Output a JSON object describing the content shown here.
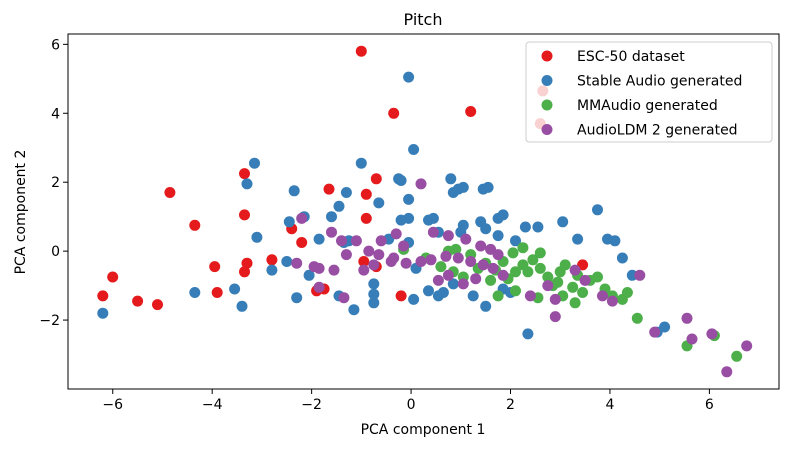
{
  "chart_data": {
    "type": "scatter",
    "title": "Pitch",
    "xlabel": "PCA component 1",
    "ylabel": "PCA component 2",
    "xlim": [
      -6.9,
      7.4
    ],
    "ylim": [
      -4.0,
      6.3
    ],
    "xticks": [
      -6,
      -4,
      -2,
      0,
      2,
      4,
      6
    ],
    "yticks": [
      -2,
      0,
      2,
      4,
      6
    ],
    "xtick_labels": [
      "−6",
      "−4",
      "−2",
      "0",
      "2",
      "4",
      "6"
    ],
    "ytick_labels": [
      "−2",
      "0",
      "2",
      "4",
      "6"
    ],
    "legend_position": "top-right",
    "series": [
      {
        "name": "ESC-50 dataset",
        "color": "#e41a1c",
        "points": [
          [
            -1.0,
            5.8
          ],
          [
            -0.35,
            4.0
          ],
          [
            1.2,
            4.05
          ],
          [
            -3.35,
            2.25
          ],
          [
            -4.85,
            1.7
          ],
          [
            -1.65,
            1.8
          ],
          [
            -0.7,
            2.1
          ],
          [
            -0.9,
            1.65
          ],
          [
            -3.35,
            1.05
          ],
          [
            -0.9,
            0.95
          ],
          [
            -4.35,
            0.75
          ],
          [
            -2.4,
            0.65
          ],
          [
            -2.2,
            0.25
          ],
          [
            -2.8,
            -0.25
          ],
          [
            -3.3,
            -0.35
          ],
          [
            -3.35,
            -0.6
          ],
          [
            -3.95,
            -0.45
          ],
          [
            -6.0,
            -0.75
          ],
          [
            -6.2,
            -1.3
          ],
          [
            -5.5,
            -1.45
          ],
          [
            -5.1,
            -1.55
          ],
          [
            -3.9,
            -1.2
          ],
          [
            -1.9,
            -1.15
          ],
          [
            -1.75,
            -1.1
          ],
          [
            -0.95,
            -0.3
          ],
          [
            -0.7,
            -0.45
          ],
          [
            -0.2,
            -1.3
          ],
          [
            2.65,
            4.65
          ],
          [
            2.6,
            3.7
          ],
          [
            3.45,
            -0.4
          ]
        ]
      },
      {
        "name": "Stable Audio generated",
        "color": "#377eb8",
        "points": [
          [
            -0.05,
            5.05
          ],
          [
            0.05,
            2.95
          ],
          [
            -1.0,
            2.55
          ],
          [
            -0.25,
            2.1
          ],
          [
            -0.2,
            2.05
          ],
          [
            -3.15,
            2.55
          ],
          [
            -3.3,
            1.95
          ],
          [
            -2.35,
            1.75
          ],
          [
            -1.3,
            1.7
          ],
          [
            -1.45,
            1.3
          ],
          [
            -1.6,
            1.0
          ],
          [
            -2.15,
            1.0
          ],
          [
            -2.45,
            0.85
          ],
          [
            -0.65,
            1.4
          ],
          [
            -0.05,
            1.5
          ],
          [
            -0.2,
            0.9
          ],
          [
            -0.05,
            0.95
          ],
          [
            0.35,
            0.9
          ],
          [
            0.45,
            0.95
          ],
          [
            0.85,
            1.7
          ],
          [
            0.95,
            1.8
          ],
          [
            1.05,
            1.85
          ],
          [
            1.45,
            1.8
          ],
          [
            1.55,
            1.85
          ],
          [
            0.8,
            2.1
          ],
          [
            1.05,
            0.75
          ],
          [
            1.4,
            0.85
          ],
          [
            1.75,
            0.95
          ],
          [
            1.85,
            1.05
          ],
          [
            2.3,
            0.7
          ],
          [
            2.55,
            0.7
          ],
          [
            3.05,
            0.85
          ],
          [
            3.75,
            1.2
          ],
          [
            3.35,
            0.35
          ],
          [
            3.95,
            0.35
          ],
          [
            4.1,
            0.3
          ],
          [
            4.25,
            -0.2
          ],
          [
            4.45,
            -0.7
          ],
          [
            5.1,
            -2.2
          ],
          [
            4.95,
            -2.35
          ],
          [
            2.35,
            -2.4
          ],
          [
            -6.2,
            -1.8
          ],
          [
            -4.35,
            -1.2
          ],
          [
            -3.55,
            -1.1
          ],
          [
            -3.4,
            -1.6
          ],
          [
            -3.1,
            0.4
          ],
          [
            -2.8,
            -0.55
          ],
          [
            -2.3,
            -1.35
          ],
          [
            -2.05,
            -0.7
          ],
          [
            -2.5,
            -0.3
          ],
          [
            -1.85,
            0.35
          ],
          [
            -1.35,
            0.25
          ],
          [
            -1.25,
            0.3
          ],
          [
            -0.45,
            0.35
          ],
          [
            -0.05,
            0.25
          ],
          [
            0.55,
            0.55
          ],
          [
            1.0,
            0.55
          ],
          [
            1.5,
            0.65
          ],
          [
            1.75,
            0.45
          ],
          [
            2.1,
            0.3
          ],
          [
            -1.45,
            -1.3
          ],
          [
            -0.75,
            -1.5
          ],
          [
            -1.15,
            -1.7
          ],
          [
            -0.75,
            -1.25
          ],
          [
            -0.75,
            -0.95
          ],
          [
            0.05,
            -1.4
          ],
          [
            0.35,
            -1.15
          ],
          [
            0.55,
            -1.3
          ],
          [
            0.65,
            -1.2
          ],
          [
            0.85,
            -0.95
          ],
          [
            1.25,
            -1.3
          ],
          [
            1.5,
            -1.6
          ],
          [
            1.85,
            -1.1
          ],
          [
            2.0,
            -1.2
          ],
          [
            0.1,
            -0.5
          ]
        ]
      },
      {
        "name": "MMAudio generated",
        "color": "#4daf4a",
        "points": [
          [
            0.9,
            0.05
          ],
          [
            1.2,
            -0.1
          ],
          [
            1.5,
            -0.35
          ],
          [
            1.7,
            -0.55
          ],
          [
            1.95,
            -0.8
          ],
          [
            2.1,
            -0.6
          ],
          [
            2.25,
            -0.4
          ],
          [
            2.45,
            -0.25
          ],
          [
            2.6,
            -0.5
          ],
          [
            2.75,
            -0.75
          ],
          [
            2.95,
            -0.9
          ],
          [
            3.1,
            -0.4
          ],
          [
            3.25,
            -1.05
          ],
          [
            3.45,
            -1.2
          ],
          [
            3.6,
            -0.85
          ],
          [
            3.75,
            -0.75
          ],
          [
            3.9,
            -1.1
          ],
          [
            4.05,
            -1.3
          ],
          [
            4.25,
            -1.4
          ],
          [
            4.35,
            -1.2
          ],
          [
            4.55,
            -1.95
          ],
          [
            2.35,
            -0.6
          ],
          [
            2.55,
            -1.35
          ],
          [
            2.85,
            -1.0
          ],
          [
            3.05,
            -1.3
          ],
          [
            3.3,
            -1.5
          ],
          [
            1.75,
            -1.3
          ],
          [
            2.1,
            -1.15
          ],
          [
            1.6,
            -0.85
          ],
          [
            1.35,
            -0.5
          ],
          [
            0.6,
            -0.45
          ],
          [
            0.85,
            -0.6
          ],
          [
            1.05,
            -0.75
          ],
          [
            0.3,
            -0.2
          ],
          [
            -0.15,
            0.05
          ],
          [
            2.05,
            -0.05
          ],
          [
            2.25,
            0.1
          ],
          [
            2.6,
            -0.05
          ],
          [
            3.0,
            -0.6
          ],
          [
            3.35,
            -0.7
          ],
          [
            5.55,
            -2.75
          ],
          [
            6.1,
            -2.45
          ],
          [
            6.55,
            -3.05
          ],
          [
            1.85,
            -0.3
          ],
          [
            0.75,
            0.0
          ]
        ]
      },
      {
        "name": "AudioLDM 2 generated",
        "color": "#984ea3",
        "points": [
          [
            0.2,
            1.95
          ],
          [
            -2.2,
            0.95
          ],
          [
            -1.6,
            0.55
          ],
          [
            -1.4,
            0.3
          ],
          [
            -1.1,
            0.3
          ],
          [
            -1.3,
            -0.1
          ],
          [
            -0.85,
            0.0
          ],
          [
            -0.65,
            -0.1
          ],
          [
            -0.35,
            -0.2
          ],
          [
            -2.3,
            -0.35
          ],
          [
            -1.95,
            -0.45
          ],
          [
            -1.85,
            -0.5
          ],
          [
            -1.55,
            -0.55
          ],
          [
            -0.95,
            -0.55
          ],
          [
            -0.75,
            -0.4
          ],
          [
            -0.4,
            -0.3
          ],
          [
            -0.1,
            -0.35
          ],
          [
            0.2,
            -0.3
          ],
          [
            0.4,
            -0.25
          ],
          [
            0.7,
            -0.15
          ],
          [
            0.95,
            -0.2
          ],
          [
            1.2,
            -0.3
          ],
          [
            1.45,
            -0.4
          ],
          [
            1.65,
            -0.5
          ],
          [
            1.85,
            -0.7
          ],
          [
            -0.6,
            0.3
          ],
          [
            -0.3,
            0.5
          ],
          [
            0.45,
            0.55
          ],
          [
            0.75,
            0.45
          ],
          [
            1.1,
            0.35
          ],
          [
            1.4,
            0.15
          ],
          [
            1.6,
            0.05
          ],
          [
            1.75,
            -0.1
          ],
          [
            -1.85,
            -1.05
          ],
          [
            -1.35,
            -1.35
          ],
          [
            0.55,
            -0.85
          ],
          [
            0.75,
            -0.7
          ],
          [
            1.05,
            -0.95
          ],
          [
            1.3,
            -0.8
          ],
          [
            2.4,
            -1.3
          ],
          [
            2.75,
            -1.0
          ],
          [
            2.9,
            -1.4
          ],
          [
            2.9,
            -1.9
          ],
          [
            3.3,
            -0.55
          ],
          [
            3.5,
            -0.85
          ],
          [
            3.85,
            -1.3
          ],
          [
            4.05,
            -1.45
          ],
          [
            4.6,
            -0.7
          ],
          [
            4.9,
            -2.35
          ],
          [
            5.55,
            -1.95
          ],
          [
            5.65,
            -2.55
          ],
          [
            6.05,
            -2.4
          ],
          [
            6.35,
            -3.5
          ],
          [
            6.75,
            -2.75
          ],
          [
            -0.15,
            0.15
          ]
        ]
      }
    ]
  }
}
